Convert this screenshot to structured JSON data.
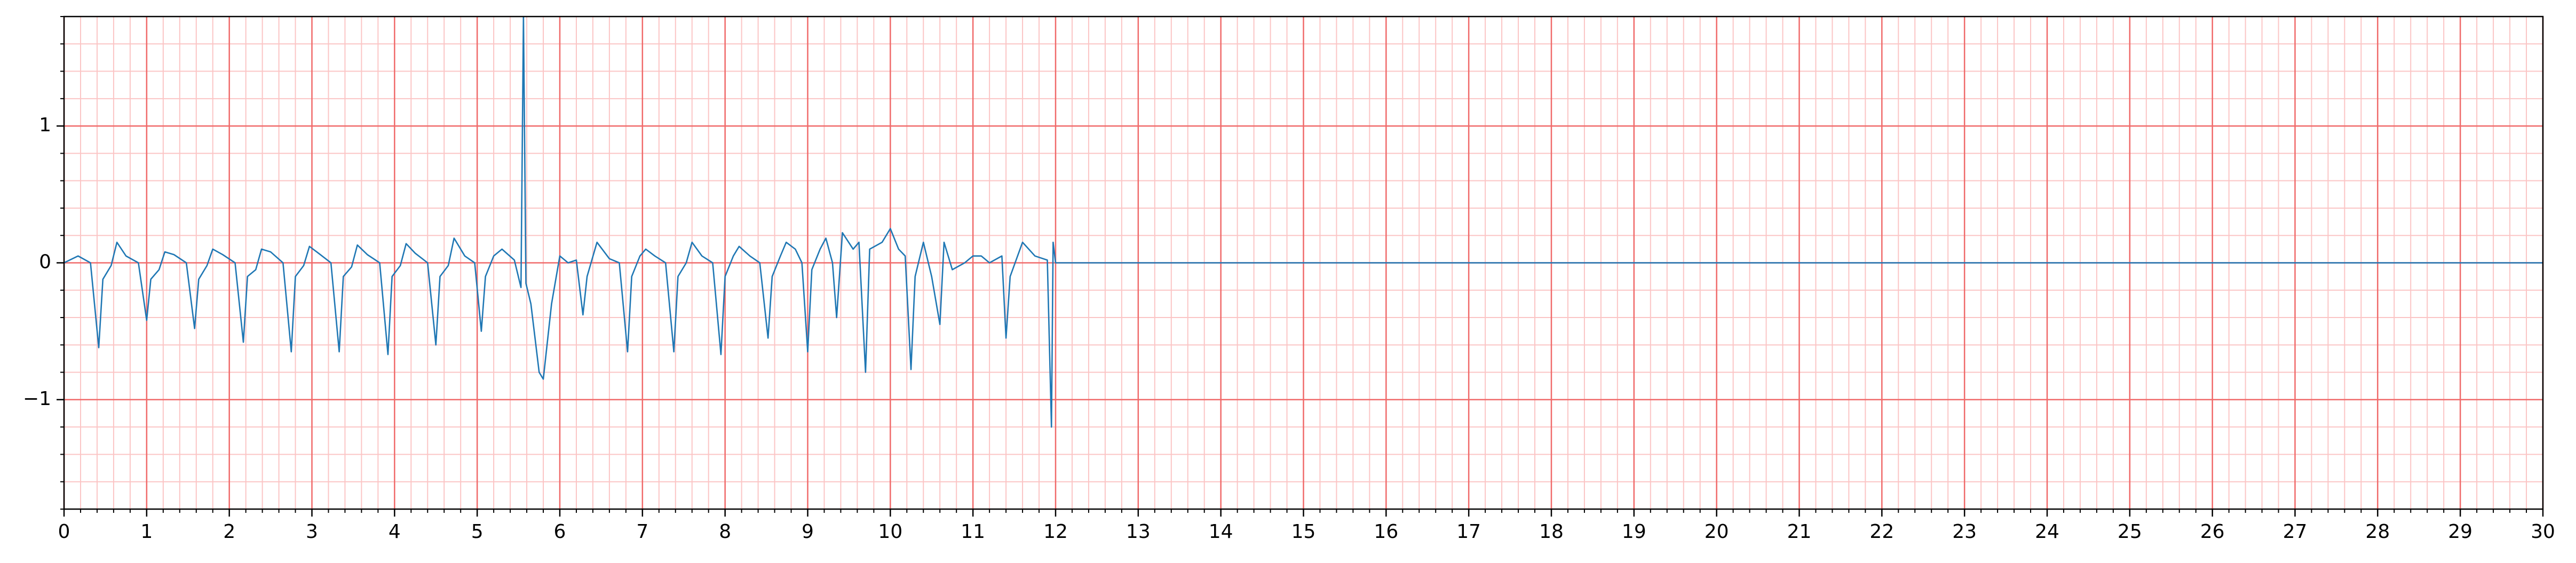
{
  "chart_data": {
    "type": "line",
    "x": [
      0,
      0.17,
      0.32,
      0.42,
      0.47,
      0.57,
      0.64,
      0.75,
      0.9,
      1.0,
      1.05,
      1.15,
      1.22,
      1.33,
      1.48,
      1.58,
      1.63,
      1.73,
      1.8,
      1.92,
      2.07,
      2.17,
      2.22,
      2.32,
      2.39,
      2.5,
      2.65,
      2.75,
      2.8,
      2.9,
      2.97,
      3.08,
      3.23,
      3.33,
      3.38,
      3.48,
      3.55,
      3.67,
      3.82,
      3.92,
      3.97,
      4.07,
      4.14,
      4.25,
      4.4,
      4.5,
      4.55,
      4.65,
      4.72,
      4.85,
      4.97,
      5.05,
      5.1,
      5.2,
      5.3,
      5.45,
      5.53,
      5.56,
      5.59,
      5.65,
      5.75,
      5.8,
      5.9,
      6.0,
      6.1,
      6.2,
      6.28,
      6.33,
      6.45,
      6.6,
      6.72,
      6.82,
      6.87,
      6.97,
      7.04,
      7.15,
      7.28,
      7.38,
      7.43,
      7.53,
      7.6,
      7.72,
      7.85,
      7.95,
      8.0,
      8.1,
      8.17,
      8.3,
      8.42,
      8.52,
      8.57,
      8.67,
      8.74,
      8.85,
      8.93,
      9.0,
      9.05,
      9.15,
      9.22,
      9.3,
      9.35,
      9.42,
      9.55,
      9.62,
      9.7,
      9.75,
      9.9,
      10.0,
      10.1,
      10.18,
      10.25,
      10.3,
      10.4,
      10.5,
      10.6,
      10.65,
      10.75,
      10.9,
      11.0,
      11.1,
      11.2,
      11.35,
      11.4,
      11.45,
      11.6,
      11.75,
      11.9,
      11.95,
      11.97,
      12.0,
      30
    ],
    "values": [
      0,
      0.05,
      0.0,
      -0.62,
      -0.12,
      -0.02,
      0.15,
      0.05,
      0.0,
      -0.42,
      -0.12,
      -0.05,
      0.08,
      0.06,
      0.0,
      -0.48,
      -0.12,
      -0.02,
      0.1,
      0.06,
      0.0,
      -0.58,
      -0.1,
      -0.05,
      0.1,
      0.08,
      0.0,
      -0.65,
      -0.1,
      -0.02,
      0.12,
      0.07,
      0.0,
      -0.65,
      -0.1,
      -0.03,
      0.13,
      0.06,
      0.0,
      -0.67,
      -0.1,
      -0.02,
      0.14,
      0.07,
      0.0,
      -0.6,
      -0.1,
      -0.02,
      0.18,
      0.05,
      0.0,
      -0.5,
      -0.1,
      0.05,
      0.1,
      0.02,
      -0.18,
      1.8,
      -0.15,
      -0.3,
      -0.8,
      -0.85,
      -0.3,
      0.05,
      0.0,
      0.02,
      -0.38,
      -0.1,
      0.15,
      0.03,
      0.0,
      -0.65,
      -0.1,
      0.05,
      0.1,
      0.05,
      0.0,
      -0.65,
      -0.1,
      0.0,
      0.15,
      0.05,
      0.0,
      -0.67,
      -0.1,
      0.05,
      0.12,
      0.05,
      0.0,
      -0.55,
      -0.1,
      0.05,
      0.15,
      0.1,
      0.0,
      -0.65,
      -0.05,
      0.1,
      0.18,
      0.0,
      -0.4,
      0.22,
      0.1,
      0.15,
      -0.8,
      0.1,
      0.15,
      0.25,
      0.1,
      0.05,
      -0.78,
      -0.1,
      0.15,
      -0.1,
      -0.45,
      0.15,
      -0.05,
      0.0,
      0.05,
      0.05,
      0.0,
      0.05,
      -0.55,
      -0.1,
      0.15,
      0.05,
      0.02,
      -1.2,
      0.15,
      0.0,
      0.0
    ],
    "color": "#1f77b4",
    "xlim": [
      0,
      30
    ],
    "ylim": [
      -1.8,
      1.8
    ],
    "xticks": [
      0,
      1,
      2,
      3,
      4,
      5,
      6,
      7,
      8,
      9,
      10,
      11,
      12,
      13,
      14,
      15,
      16,
      17,
      18,
      19,
      20,
      21,
      22,
      23,
      24,
      25,
      26,
      27,
      28,
      29,
      30
    ],
    "yticks": [
      {
        "value": -1,
        "label": "−1"
      },
      0,
      1
    ],
    "grid": true,
    "grid_color": "#f06a6a",
    "minor_grid_color": "#fbc5c5",
    "minor_xstep": 0.2,
    "minor_ystep": 0.2
  }
}
